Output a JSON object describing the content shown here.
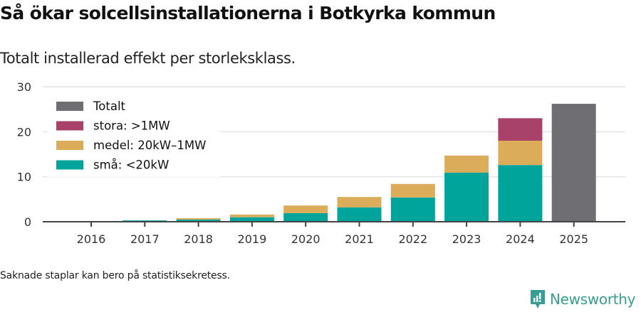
{
  "header": {
    "title": "Så ökar solcellsinstallationerna i Botkyrka kommun",
    "subtitle": "Totalt installerad effekt per storleksklass."
  },
  "footer": {
    "note": "Saknade staplar kan bero på statistiksekretess.",
    "brand": "Newsworthy"
  },
  "colors": {
    "totalt": "#6f6e73",
    "stora": "#a8426a",
    "medel": "#dbac5a",
    "sma": "#00a49a",
    "grid": "#e3e3e3",
    "axis": "#444444",
    "brand": "#3a9d93"
  },
  "chart_data": {
    "type": "bar",
    "stacked": true,
    "title": "Så ökar solcellsinstallationerna i Botkyrka kommun",
    "subtitle": "Totalt installerad effekt per storleksklass.",
    "xlabel": "",
    "ylabel": "",
    "ylim": [
      0,
      30
    ],
    "yticks": [
      0,
      10,
      20,
      30
    ],
    "grid": true,
    "legend_position": "top-left",
    "categories": [
      "2016",
      "2017",
      "2018",
      "2019",
      "2020",
      "2021",
      "2022",
      "2023",
      "2024",
      "2025"
    ],
    "series": [
      {
        "name": "små: <20kW",
        "color": "#00a49a",
        "values": [
          0,
          0.3,
          0.5,
          1.0,
          1.9,
          3.2,
          5.4,
          10.9,
          12.6,
          null
        ]
      },
      {
        "name": "medel: 20kW–1MW",
        "color": "#dbac5a",
        "values": [
          0,
          0,
          0.3,
          0.6,
          1.7,
          2.3,
          3.0,
          3.8,
          5.4,
          null
        ]
      },
      {
        "name": "stora: >1MW",
        "color": "#a8426a",
        "values": [
          0,
          0,
          0,
          0,
          0,
          0,
          0,
          0,
          5.0,
          null
        ]
      },
      {
        "name": "Totalt",
        "color": "#6f6e73",
        "values": [
          null,
          null,
          null,
          null,
          null,
          null,
          null,
          null,
          null,
          26.2
        ]
      }
    ],
    "legend": [
      "Totalt",
      "stora: >1MW",
      "medel: 20kW–1MW",
      "små: <20kW"
    ]
  }
}
